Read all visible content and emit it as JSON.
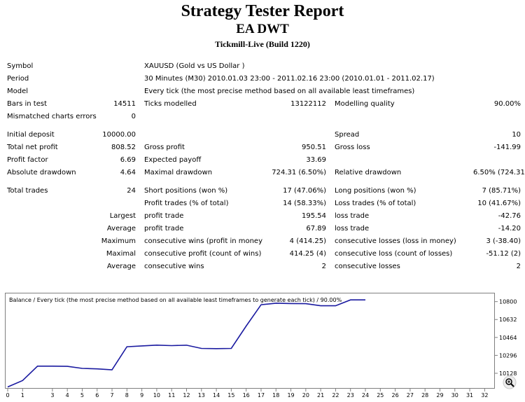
{
  "header": {
    "title": "Strategy Tester Report",
    "ea_name": "EA DWT",
    "server": "Tickmill-Live (Build 1220)"
  },
  "info": {
    "symbol_label": "Symbol",
    "symbol_value": "XAUUSD (Gold vs US Dollar )",
    "period_label": "Period",
    "period_value": "30 Minutes (M30) 2010.01.03 23:00 - 2011.02.16 23:00 (2010.01.01 - 2011.02.17)",
    "model_label": "Model",
    "model_value": "Every tick (the most precise method based on all available least timeframes)",
    "bars_label": "Bars in test",
    "bars_value": "14511",
    "ticks_label": "Ticks modelled",
    "ticks_value": "13122112",
    "quality_label": "Modelling quality",
    "quality_value": "90.00%",
    "mismatch_label": "Mismatched charts errors",
    "mismatch_value": "0"
  },
  "stats": {
    "initial_deposit_label": "Initial deposit",
    "initial_deposit": "10000.00",
    "spread_label": "Spread",
    "spread": "10",
    "net_profit_label": "Total net profit",
    "net_profit": "808.52",
    "gross_profit_label": "Gross profit",
    "gross_profit": "950.51",
    "gross_loss_label": "Gross loss",
    "gross_loss": "-141.99",
    "profit_factor_label": "Profit factor",
    "profit_factor": "6.69",
    "expected_payoff_label": "Expected payoff",
    "expected_payoff": "33.69",
    "abs_dd_label": "Absolute drawdown",
    "abs_dd": "4.64",
    "max_dd_label": "Maximal drawdown",
    "max_dd": "724.31 (6.50%)",
    "rel_dd_label": "Relative drawdown",
    "rel_dd": "6.50% (724.31)"
  },
  "trades": {
    "total_label": "Total trades",
    "total": "24",
    "short_label": "Short positions (won %)",
    "short": "17 (47.06%)",
    "long_label": "Long positions (won %)",
    "long": "7 (85.71%)",
    "profit_trades_label": "Profit trades (% of total)",
    "profit_trades": "14 (58.33%)",
    "loss_trades_label": "Loss trades (% of total)",
    "loss_trades": "10 (41.67%)",
    "largest_label": "Largest",
    "largest_profit_label": "profit trade",
    "largest_profit": "195.54",
    "largest_loss_label": "loss trade",
    "largest_loss": "-42.76",
    "average_label": "Average",
    "average_profit_label": "profit trade",
    "average_profit": "67.89",
    "average_loss_label": "loss trade",
    "average_loss": "-14.20",
    "maximum_label": "Maximum",
    "max_cons_wins_label": "consecutive wins (profit in money)",
    "max_cons_wins": "4 (414.25)",
    "max_cons_losses_label": "consecutive losses (loss in money)",
    "max_cons_losses": "3 (-38.40)",
    "maximal_label": "Maximal",
    "maximal_cons_profit_label": "consecutive profit (count of wins)",
    "maximal_cons_profit": "414.25 (4)",
    "maximal_cons_loss_label": "consecutive loss (count of losses)",
    "maximal_cons_loss": "-51.12 (2)",
    "avg2_label": "Average",
    "avg_cons_wins_label": "consecutive wins",
    "avg_cons_wins": "2",
    "avg_cons_losses_label": "consecutive losses",
    "avg_cons_losses": "2"
  },
  "chart_data": {
    "type": "line",
    "title": "Balance / Every tick (the most precise method based on all available least timeframes to generate each tick) / 90.00%",
    "xlabel": "",
    "ylabel": "",
    "x_ticks": [
      0,
      1,
      3,
      4,
      5,
      6,
      7,
      8,
      9,
      10,
      11,
      12,
      13,
      14,
      15,
      16,
      17,
      18,
      19,
      20,
      21,
      22,
      23,
      24,
      25,
      26,
      27,
      28,
      29,
      30,
      31,
      32
    ],
    "y_ticks": [
      10128,
      10296,
      10464,
      10632,
      10800
    ],
    "xlim": [
      0,
      32.5
    ],
    "ylim": [
      9990,
      10870
    ],
    "line_color": "#1a1aa0",
    "series": [
      {
        "x": [
          0,
          1,
          2,
          3,
          4,
          5,
          6,
          7,
          8,
          9,
          10,
          11,
          12,
          13,
          14,
          15,
          16,
          17,
          18,
          19,
          20,
          21,
          22,
          23,
          24
        ],
        "values": [
          10000,
          10060,
          10195,
          10195,
          10193,
          10174,
          10169,
          10160,
          10377,
          10385,
          10392,
          10387,
          10391,
          10361,
          10359,
          10361,
          10571,
          10771,
          10785,
          10782,
          10781,
          10761,
          10761,
          10816,
          10816
        ]
      }
    ],
    "zoom_icon": "magnifier-plus-icon"
  }
}
